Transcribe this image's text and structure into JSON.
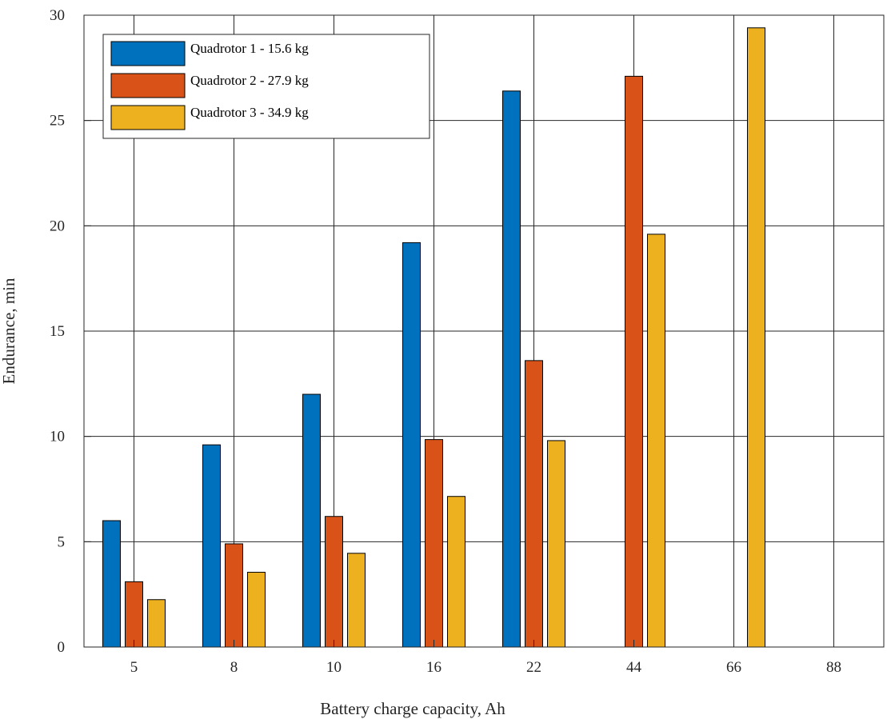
{
  "chart_data": {
    "type": "bar",
    "title": "",
    "xlabel": "Battery charge capacity, Ah",
    "ylabel": "Endurance, min",
    "categories": [
      "5",
      "8",
      "10",
      "16",
      "22",
      "44",
      "66",
      "88"
    ],
    "ylim": [
      0,
      30
    ],
    "yticks": [
      "0",
      "5",
      "10",
      "15",
      "20",
      "25",
      "30"
    ],
    "grid": true,
    "legend_position": "top-left",
    "series": [
      {
        "name": "Quadrotor 1 - 15.6 kg",
        "color": "#0072BD",
        "values": [
          6.0,
          9.6,
          12.0,
          19.2,
          26.4,
          null,
          null,
          null
        ]
      },
      {
        "name": "Quadrotor 2 - 27.9 kg",
        "color": "#D95319",
        "values": [
          3.1,
          4.9,
          6.2,
          9.85,
          13.6,
          27.1,
          null,
          null
        ]
      },
      {
        "name": "Quadrotor 3 - 34.9 kg",
        "color": "#EDB120",
        "values": [
          2.25,
          3.55,
          4.45,
          7.15,
          9.8,
          19.6,
          29.4,
          null
        ]
      }
    ]
  }
}
